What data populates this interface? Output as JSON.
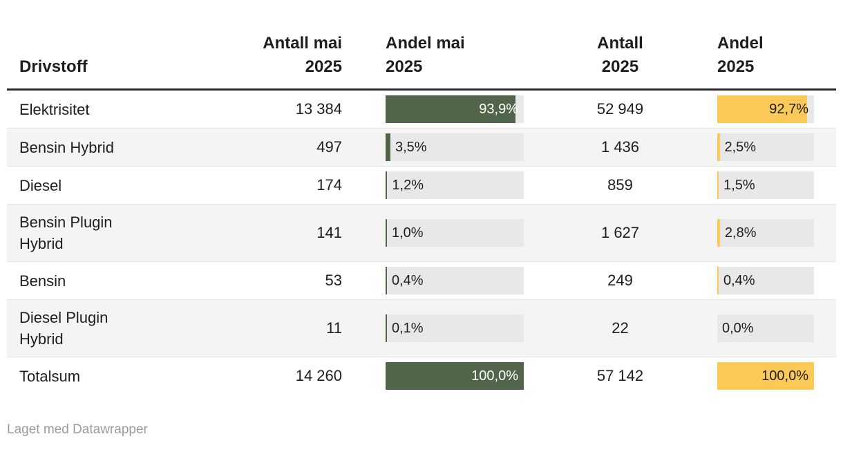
{
  "colors": {
    "bar_green": "#506549",
    "bar_yellow": "#fbc957",
    "bar_track": "#e8e8e8",
    "row_stripe": "#f4f4f4",
    "header_rule": "#2b2b2b",
    "text": "#1d1d1d",
    "credit_text": "#9b9b9b"
  },
  "table": {
    "columns": [
      {
        "header": "Drivstoff"
      },
      {
        "header": "Antall mai\n2025"
      },
      {
        "header": "Andel mai\n2025"
      },
      {
        "header": "Antall\n2025"
      },
      {
        "header": "Andel\n2025"
      }
    ],
    "rows": [
      {
        "label": "Elektrisitet",
        "antall_mai": "13 384",
        "andel_mai": {
          "value": 93.9,
          "label": "93,9%"
        },
        "antall_2025": "52 949",
        "andel_2025": {
          "value": 92.7,
          "label": "92,7%"
        }
      },
      {
        "label": "Bensin Hybrid",
        "antall_mai": "497",
        "andel_mai": {
          "value": 3.5,
          "label": "3,5%"
        },
        "antall_2025": "1 436",
        "andel_2025": {
          "value": 2.5,
          "label": "2,5%"
        }
      },
      {
        "label": "Diesel",
        "antall_mai": "174",
        "andel_mai": {
          "value": 1.2,
          "label": "1,2%"
        },
        "antall_2025": "859",
        "andel_2025": {
          "value": 1.5,
          "label": "1,5%"
        }
      },
      {
        "label": "Bensin Plugin Hybrid",
        "antall_mai": "141",
        "andel_mai": {
          "value": 1.0,
          "label": "1,0%"
        },
        "antall_2025": "1 627",
        "andel_2025": {
          "value": 2.8,
          "label": "2,8%"
        }
      },
      {
        "label": "Bensin",
        "antall_mai": "53",
        "andel_mai": {
          "value": 0.4,
          "label": "0,4%"
        },
        "antall_2025": "249",
        "andel_2025": {
          "value": 0.4,
          "label": "0,4%"
        }
      },
      {
        "label": "Diesel Plugin Hybrid",
        "antall_mai": "11",
        "andel_mai": {
          "value": 0.1,
          "label": "0,1%"
        },
        "antall_2025": "22",
        "andel_2025": {
          "value": 0.0,
          "label": "0,0%"
        }
      },
      {
        "label": "Totalsum",
        "antall_mai": "14 260",
        "andel_mai": {
          "value": 100.0,
          "label": "100,0%"
        },
        "antall_2025": "57 142",
        "andel_2025": {
          "value": 100.0,
          "label": "100,0%"
        }
      }
    ]
  },
  "footer": {
    "credit": "Laget med Datawrapper"
  },
  "chart_data": {
    "type": "table",
    "title": "",
    "columns": [
      "Drivstoff",
      "Antall mai 2025",
      "Andel mai 2025 (%)",
      "Antall 2025",
      "Andel 2025 (%)"
    ],
    "rows": [
      [
        "Elektrisitet",
        13384,
        93.9,
        52949,
        92.7
      ],
      [
        "Bensin Hybrid",
        497,
        3.5,
        1436,
        2.5
      ],
      [
        "Diesel",
        174,
        1.2,
        859,
        1.5
      ],
      [
        "Bensin Plugin Hybrid",
        141,
        1.0,
        1627,
        2.8
      ],
      [
        "Bensin",
        53,
        0.4,
        249,
        0.4
      ],
      [
        "Diesel Plugin Hybrid",
        11,
        0.1,
        22,
        0.0
      ],
      [
        "Totalsum",
        14260,
        100.0,
        57142,
        100.0
      ]
    ],
    "bar_columns": [
      "Andel mai 2025 (%)",
      "Andel 2025 (%)"
    ],
    "bar_colors": [
      "#506549",
      "#fbc957"
    ],
    "bar_axis_max": 100,
    "layout": {
      "striped_rows": true,
      "grid": false,
      "legend": "none"
    }
  }
}
